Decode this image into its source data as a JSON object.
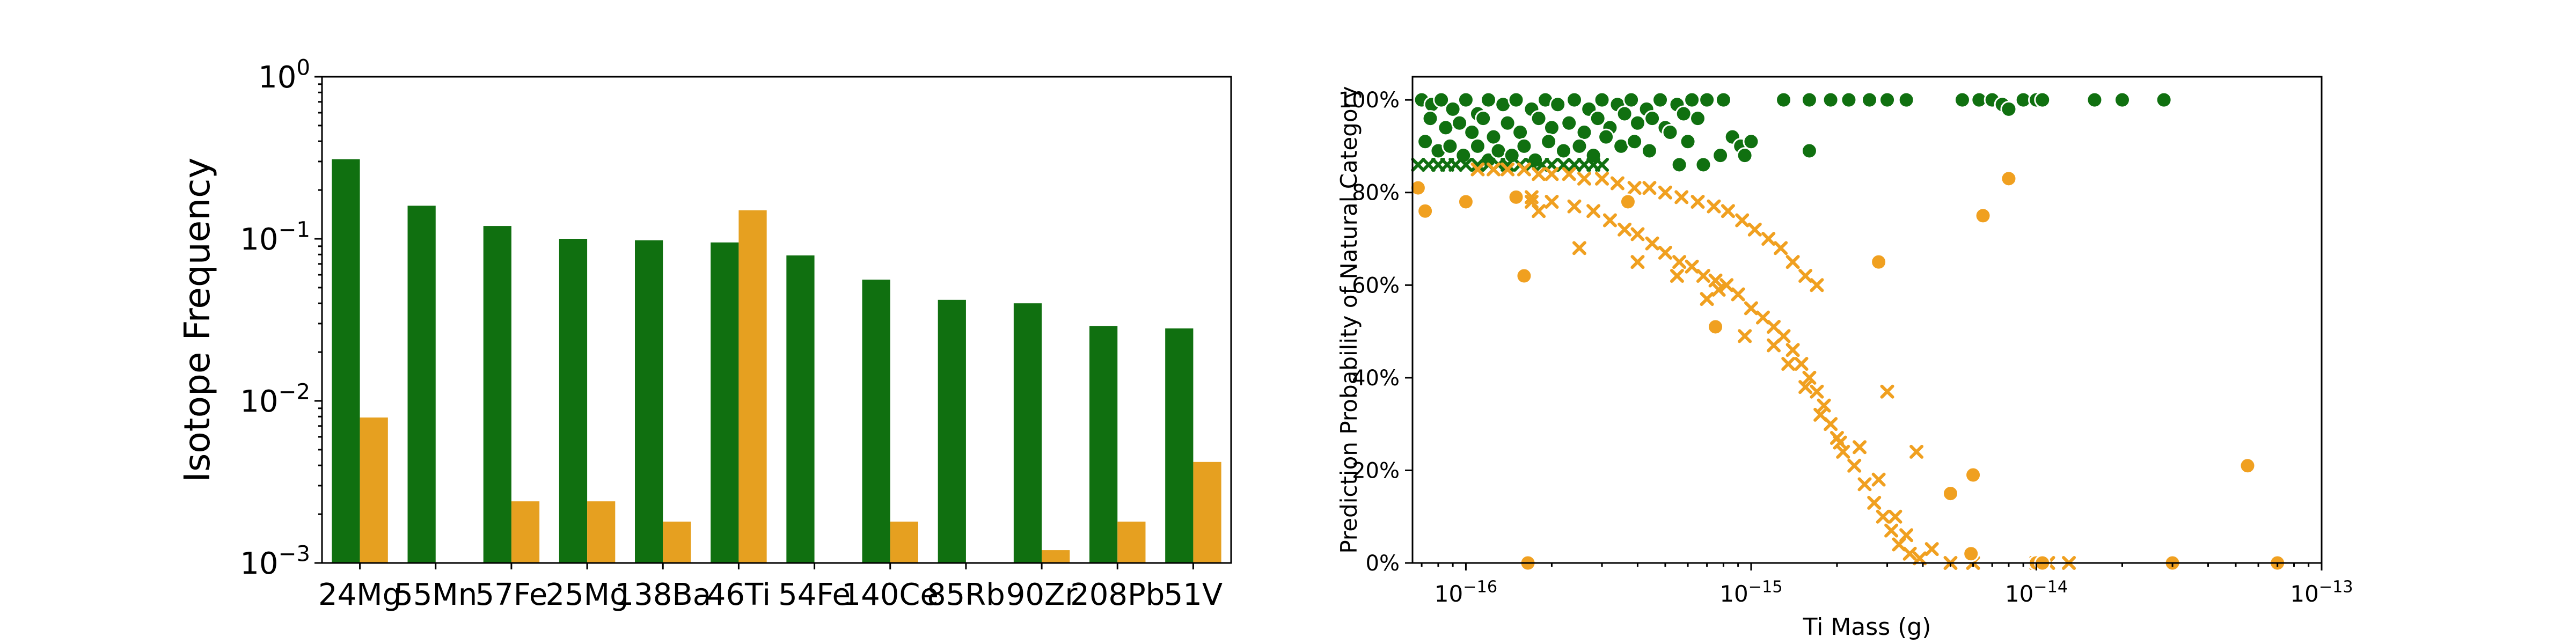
{
  "chart_data": [
    {
      "type": "bar",
      "ylabel": "Isotope Frequency",
      "yscale": "log",
      "ylim": [
        0.001,
        1
      ],
      "ytick_labels": [
        {
          "mant": "10",
          "exp": "0",
          "value": 1
        },
        {
          "mant": "10",
          "exp": "−1",
          "value": 0.1
        },
        {
          "mant": "10",
          "exp": "−2",
          "value": 0.01
        },
        {
          "mant": "10",
          "exp": "−3",
          "value": 0.001
        }
      ],
      "categories": [
        "24Mg",
        "55Mn",
        "57Fe",
        "25Mg",
        "138Ba",
        "46Ti",
        "54Fe",
        "140Ce",
        "85Rb",
        "90Zr",
        "208Pb",
        "51V"
      ],
      "colors": [
        "#107010",
        "#e6a020"
      ],
      "series": [
        {
          "values": [
            0.31,
            0.16,
            0.12,
            0.1,
            0.098,
            0.095,
            0.079,
            0.056,
            0.042,
            0.04,
            0.029,
            0.028
          ]
        },
        {
          "values": [
            0.0079,
            null,
            0.0024,
            0.0024,
            0.0018,
            0.15,
            null,
            0.0018,
            null,
            0.0012,
            0.0018,
            0.0042
          ]
        }
      ],
      "grid": false
    },
    {
      "type": "scatter",
      "xlabel": "Ti Mass (g)",
      "ylabel": "Prediction Probability of Natural Category",
      "xscale": "log",
      "xlim": [
        6.5e-17,
        1e-13
      ],
      "ylim": [
        0,
        1.05
      ],
      "xtick_labels": [
        {
          "mant": "10",
          "exp": "−16",
          "value": 1e-16
        },
        {
          "mant": "10",
          "exp": "−15",
          "value": 1e-15
        },
        {
          "mant": "10",
          "exp": "−14",
          "value": 1e-14
        },
        {
          "mant": "10",
          "exp": "−13",
          "value": 1e-13
        }
      ],
      "ytick_labels": [
        {
          "label": "0%",
          "value": 0
        },
        {
          "label": "20%",
          "value": 0.2
        },
        {
          "label": "40%",
          "value": 0.4
        },
        {
          "label": "60%",
          "value": 0.6
        },
        {
          "label": "80%",
          "value": 0.8
        },
        {
          "label": "100%",
          "value": 1.0
        }
      ],
      "colors": {
        "green": "#107010",
        "orange": "#f0a020"
      },
      "series": [
        {
          "marker": "circle",
          "color": "green",
          "points": [
            [
              7e-17,
              1.0
            ],
            [
              7.6e-17,
              0.99
            ],
            [
              8.2e-17,
              1.0
            ],
            [
              9e-17,
              0.98
            ],
            [
              1e-16,
              1.0
            ],
            [
              1.1e-16,
              0.97
            ],
            [
              1.2e-16,
              1.0
            ],
            [
              1.35e-16,
              0.99
            ],
            [
              1.5e-16,
              1.0
            ],
            [
              1.7e-16,
              0.98
            ],
            [
              1.9e-16,
              1.0
            ],
            [
              2.1e-16,
              0.99
            ],
            [
              2.4e-16,
              1.0
            ],
            [
              2.7e-16,
              0.98
            ],
            [
              3e-16,
              1.0
            ],
            [
              3.4e-16,
              0.99
            ],
            [
              3.8e-16,
              1.0
            ],
            [
              4.3e-16,
              0.98
            ],
            [
              4.8e-16,
              1.0
            ],
            [
              5.5e-16,
              0.99
            ],
            [
              6.2e-16,
              1.0
            ],
            [
              7e-16,
              1.0
            ],
            [
              8e-16,
              1.0
            ],
            [
              1.3e-15,
              1.0
            ],
            [
              1.6e-15,
              1.0
            ],
            [
              1.9e-15,
              1.0
            ],
            [
              2.2e-15,
              1.0
            ],
            [
              2.6e-15,
              1.0
            ],
            [
              3e-15,
              1.0
            ],
            [
              3.5e-15,
              1.0
            ],
            [
              5.5e-15,
              1.0
            ],
            [
              6.3e-15,
              1.0
            ],
            [
              7e-15,
              1.0
            ],
            [
              7.6e-15,
              0.99
            ],
            [
              8e-15,
              0.98
            ],
            [
              9e-15,
              1.0
            ],
            [
              1e-14,
              1.0
            ],
            [
              1.05e-14,
              1.0
            ],
            [
              1.6e-14,
              1.0
            ],
            [
              2e-14,
              1.0
            ],
            [
              2.8e-14,
              1.0
            ],
            [
              7.5e-17,
              0.96
            ],
            [
              8.5e-17,
              0.94
            ],
            [
              9.5e-17,
              0.95
            ],
            [
              1.05e-16,
              0.93
            ],
            [
              1.15e-16,
              0.96
            ],
            [
              1.25e-16,
              0.92
            ],
            [
              1.4e-16,
              0.95
            ],
            [
              1.55e-16,
              0.93
            ],
            [
              1.8e-16,
              0.96
            ],
            [
              2e-16,
              0.94
            ],
            [
              2.3e-16,
              0.95
            ],
            [
              2.6e-16,
              0.93
            ],
            [
              2.9e-16,
              0.96
            ],
            [
              3.2e-16,
              0.94
            ],
            [
              3.6e-16,
              0.97
            ],
            [
              4e-16,
              0.95
            ],
            [
              4.5e-16,
              0.96
            ],
            [
              5e-16,
              0.94
            ],
            [
              5.8e-16,
              0.97
            ],
            [
              6.5e-16,
              0.96
            ],
            [
              7.2e-17,
              0.91
            ],
            [
              8e-17,
              0.89
            ],
            [
              8.8e-17,
              0.9
            ],
            [
              9.8e-17,
              0.88
            ],
            [
              1.1e-16,
              0.9
            ],
            [
              1.2e-16,
              0.87
            ],
            [
              1.3e-16,
              0.89
            ],
            [
              1.45e-16,
              0.88
            ],
            [
              1.6e-16,
              0.9
            ],
            [
              1.75e-16,
              0.87
            ],
            [
              1.95e-16,
              0.91
            ],
            [
              2.2e-16,
              0.89
            ],
            [
              2.5e-16,
              0.9
            ],
            [
              2.8e-16,
              0.88
            ],
            [
              3.1e-16,
              0.92
            ],
            [
              3.5e-16,
              0.9
            ],
            [
              3.9e-16,
              0.91
            ],
            [
              4.4e-16,
              0.89
            ],
            [
              5.2e-16,
              0.93
            ],
            [
              6e-16,
              0.91
            ],
            [
              8.6e-16,
              0.92
            ],
            [
              9.2e-16,
              0.9
            ],
            [
              7.8e-16,
              0.88
            ],
            [
              6.8e-16,
              0.86
            ],
            [
              5.6e-16,
              0.86
            ],
            [
              1e-15,
              0.91
            ],
            [
              9.5e-16,
              0.88
            ],
            [
              1.6e-15,
              0.89
            ]
          ]
        },
        {
          "marker": "cross",
          "color": "green",
          "points": [
            [
              6.8e-17,
              0.86
            ],
            [
              7.4e-17,
              0.86
            ],
            [
              8e-17,
              0.86
            ],
            [
              8.6e-17,
              0.86
            ],
            [
              9.2e-17,
              0.86
            ],
            [
              1e-16,
              0.86
            ],
            [
              1.1e-16,
              0.86
            ],
            [
              1.2e-16,
              0.86
            ],
            [
              1.3e-16,
              0.86
            ],
            [
              1.4e-16,
              0.86
            ],
            [
              1.55e-16,
              0.86
            ],
            [
              1.7e-16,
              0.86
            ],
            [
              1.85e-16,
              0.86
            ],
            [
              2e-16,
              0.86
            ],
            [
              2.2e-16,
              0.86
            ],
            [
              2.4e-16,
              0.86
            ],
            [
              2.6e-16,
              0.86
            ],
            [
              2.8e-16,
              0.86
            ],
            [
              3e-16,
              0.86
            ]
          ]
        },
        {
          "marker": "cross",
          "color": "orange",
          "points": [
            [
              1.1e-16,
              0.85
            ],
            [
              1.25e-16,
              0.85
            ],
            [
              1.4e-16,
              0.85
            ],
            [
              1.6e-16,
              0.85
            ],
            [
              1.8e-16,
              0.84
            ],
            [
              2e-16,
              0.84
            ],
            [
              2.3e-16,
              0.84
            ],
            [
              2.6e-16,
              0.83
            ],
            [
              3e-16,
              0.83
            ],
            [
              3.4e-16,
              0.82
            ],
            [
              3.9e-16,
              0.81
            ],
            [
              4.4e-16,
              0.81
            ],
            [
              5e-16,
              0.8
            ],
            [
              5.7e-16,
              0.79
            ],
            [
              6.5e-16,
              0.78
            ],
            [
              7.4e-16,
              0.77
            ],
            [
              8.3e-16,
              0.76
            ],
            [
              9.3e-16,
              0.74
            ],
            [
              1.03e-15,
              0.72
            ],
            [
              1.15e-15,
              0.7
            ],
            [
              1.27e-15,
              0.68
            ],
            [
              1.4e-15,
              0.65
            ],
            [
              1.55e-15,
              0.62
            ],
            [
              1.7e-15,
              0.6
            ],
            [
              1.7e-16,
              0.79
            ],
            [
              2e-16,
              0.78
            ],
            [
              2.4e-16,
              0.77
            ],
            [
              2.8e-16,
              0.76
            ],
            [
              3.2e-16,
              0.74
            ],
            [
              3.6e-16,
              0.72
            ],
            [
              4e-16,
              0.71
            ],
            [
              4.5e-16,
              0.69
            ],
            [
              5e-16,
              0.67
            ],
            [
              5.6e-16,
              0.65
            ],
            [
              6.2e-16,
              0.64
            ],
            [
              6.8e-16,
              0.62
            ],
            [
              7.5e-16,
              0.61
            ],
            [
              8.2e-16,
              0.6
            ],
            [
              9e-16,
              0.58
            ],
            [
              1e-15,
              0.55
            ],
            [
              1.1e-15,
              0.53
            ],
            [
              1.2e-15,
              0.51
            ],
            [
              1.3e-15,
              0.49
            ],
            [
              1.4e-15,
              0.46
            ],
            [
              1.5e-15,
              0.43
            ],
            [
              1.6e-15,
              0.4
            ],
            [
              1.7e-15,
              0.37
            ],
            [
              1.8e-15,
              0.34
            ],
            [
              1.9e-15,
              0.3
            ],
            [
              2e-15,
              0.27
            ],
            [
              2.1e-15,
              0.24
            ],
            [
              2.3e-15,
              0.21
            ],
            [
              2.5e-15,
              0.17
            ],
            [
              2.7e-15,
              0.13
            ],
            [
              2.9e-15,
              0.1
            ],
            [
              3.1e-15,
              0.07
            ],
            [
              3.3e-15,
              0.04
            ],
            [
              3.6e-15,
              0.02
            ],
            [
              3.9e-15,
              0.01
            ],
            [
              1.7e-16,
              0.78
            ],
            [
              1.8e-16,
              0.76
            ],
            [
              2.5e-16,
              0.68
            ],
            [
              4e-16,
              0.65
            ],
            [
              5.5e-16,
              0.62
            ],
            [
              7e-16,
              0.57
            ],
            [
              7.7e-16,
              0.59
            ],
            [
              9.5e-16,
              0.49
            ],
            [
              1.2e-15,
              0.47
            ],
            [
              1.35e-15,
              0.43
            ],
            [
              1.55e-15,
              0.38
            ],
            [
              1.75e-15,
              0.32
            ],
            [
              2.05e-15,
              0.26
            ],
            [
              2.4e-15,
              0.25
            ],
            [
              2.8e-15,
              0.18
            ],
            [
              3e-15,
              0.37
            ],
            [
              3.2e-15,
              0.1
            ],
            [
              3.5e-15,
              0.06
            ],
            [
              3.8e-15,
              0.24
            ],
            [
              4.3e-15,
              0.03
            ],
            [
              5e-15,
              0.0
            ],
            [
              6e-15,
              0.0
            ],
            [
              1e-14,
              0.0
            ],
            [
              1.1e-14,
              0.0
            ],
            [
              1.3e-14,
              0.0
            ]
          ]
        },
        {
          "marker": "circle",
          "color": "orange",
          "points": [
            [
              6.8e-17,
              0.81
            ],
            [
              7.2e-17,
              0.76
            ],
            [
              1e-16,
              0.78
            ],
            [
              1.5e-16,
              0.79
            ],
            [
              1.6e-16,
              0.62
            ],
            [
              1.65e-16,
              0.0
            ],
            [
              3.7e-16,
              0.78
            ],
            [
              7.5e-16,
              0.51
            ],
            [
              2.8e-15,
              0.65
            ],
            [
              5e-15,
              0.15
            ],
            [
              5.9e-15,
              0.02
            ],
            [
              6e-15,
              0.19
            ],
            [
              6.5e-15,
              0.75
            ],
            [
              8e-15,
              0.83
            ],
            [
              1e-14,
              0.0
            ],
            [
              1.05e-14,
              0.0
            ],
            [
              3e-14,
              0.0
            ],
            [
              5.5e-14,
              0.21
            ],
            [
              7e-14,
              0.0
            ]
          ]
        }
      ],
      "grid": false
    }
  ]
}
